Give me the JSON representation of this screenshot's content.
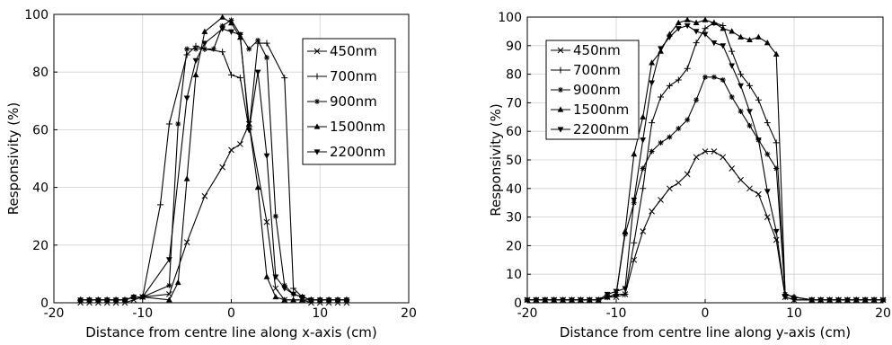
{
  "chart_data": [
    {
      "type": "line",
      "xlabel": "Distance from centre line along x-axis (cm)",
      "ylabel": "Responsivity (%)",
      "xlim": [
        -20,
        20
      ],
      "ylim": [
        0,
        100
      ],
      "xticks": [
        -20,
        -10,
        0,
        10,
        20
      ],
      "yticks": [
        0,
        20,
        40,
        60,
        80,
        100
      ],
      "grid": true,
      "legend": "top-right",
      "series": [
        {
          "name": "450nm",
          "marker": "x",
          "x": [
            -17,
            -16,
            -15,
            -14,
            -13,
            -12,
            -11,
            -10,
            -7,
            -5,
            -3,
            -1,
            0,
            1,
            2,
            4,
            5,
            6,
            8,
            9,
            10,
            11,
            12,
            13
          ],
          "y": [
            0,
            0,
            0,
            0,
            0,
            0,
            1,
            2,
            3,
            21,
            37,
            47,
            53,
            55,
            62,
            28,
            5,
            1,
            1,
            0,
            0,
            0,
            0,
            0
          ]
        },
        {
          "name": "700nm",
          "marker": "plus",
          "x": [
            -17,
            -16,
            -15,
            -14,
            -13,
            -12,
            -11,
            -10,
            -8,
            -7,
            -5,
            -4,
            -3,
            -1,
            0,
            1,
            2,
            3,
            4,
            6,
            7,
            8,
            9,
            10,
            11,
            12,
            13
          ],
          "y": [
            1,
            1,
            1,
            1,
            1,
            1,
            2,
            2,
            34,
            62,
            86,
            89,
            88,
            87,
            79,
            78,
            60,
            90,
            90,
            78,
            5,
            2,
            1,
            1,
            1,
            1,
            1
          ]
        },
        {
          "name": "900nm",
          "marker": "star",
          "x": [
            -17,
            -16,
            -15,
            -14,
            -13,
            -12,
            -11,
            -10,
            -7,
            -6,
            -5,
            -4,
            -3,
            -2,
            -1,
            0,
            1,
            2,
            3,
            4,
            5,
            6,
            7,
            8,
            9,
            10,
            11,
            12,
            13
          ],
          "y": [
            1,
            1,
            1,
            1,
            1,
            1,
            2,
            2,
            6,
            62,
            88,
            88,
            88,
            88,
            96,
            98,
            93,
            88,
            91,
            85,
            30,
            6,
            3,
            2,
            1,
            1,
            1,
            1,
            1
          ]
        },
        {
          "name": "1500nm",
          "marker": "triangle-up",
          "x": [
            -17,
            -16,
            -15,
            -14,
            -13,
            -12,
            -11,
            -10,
            -7,
            -6,
            -5,
            -4,
            -3,
            -1,
            0,
            1,
            2,
            3,
            4,
            5,
            6,
            7,
            8,
            9,
            10,
            11,
            12,
            13
          ],
          "y": [
            1,
            1,
            1,
            1,
            1,
            1,
            2,
            2,
            1,
            7,
            43,
            79,
            94,
            99,
            97,
            92,
            62,
            40,
            9,
            2,
            1,
            1,
            1,
            1,
            1,
            1,
            1,
            1
          ]
        },
        {
          "name": "2200nm",
          "marker": "triangle-down",
          "x": [
            -17,
            -16,
            -15,
            -14,
            -13,
            -12,
            -11,
            -10,
            -7,
            -5,
            -4,
            -3,
            -1,
            0,
            1,
            2,
            3,
            4,
            5,
            6,
            7,
            8,
            9,
            10,
            11,
            12,
            13
          ],
          "y": [
            1,
            1,
            1,
            1,
            1,
            1,
            2,
            2,
            15,
            71,
            84,
            90,
            95,
            94,
            93,
            60,
            80,
            51,
            9,
            5,
            3,
            2,
            1,
            1,
            1,
            1,
            1
          ]
        }
      ]
    },
    {
      "type": "line",
      "xlabel": "Distance from centre line along y-axis (cm)",
      "ylabel": "Responsivity (%)",
      "xlim": [
        -20,
        20
      ],
      "ylim": [
        0,
        100
      ],
      "xticks": [
        -20,
        -10,
        0,
        10,
        20
      ],
      "yticks": [
        0,
        10,
        20,
        30,
        40,
        50,
        60,
        70,
        80,
        90,
        100
      ],
      "grid": true,
      "legend": "top-left",
      "series": [
        {
          "name": "450nm",
          "marker": "x",
          "x": [
            -20,
            -19,
            -18,
            -17,
            -16,
            -15,
            -14,
            -13,
            -12,
            -11,
            -10,
            -9,
            -8,
            -7,
            -6,
            -5,
            -4,
            -3,
            -2,
            -1,
            0,
            1,
            2,
            3,
            4,
            5,
            6,
            7,
            8,
            9,
            10,
            12,
            13,
            14,
            15,
            16,
            17,
            18,
            19,
            20
          ],
          "y": [
            1,
            1,
            1,
            1,
            1,
            1,
            1,
            1,
            1,
            2,
            2,
            3,
            15,
            25,
            32,
            36,
            40,
            42,
            45,
            51,
            53,
            53,
            51,
            47,
            43,
            40,
            38,
            30,
            22,
            2,
            1,
            1,
            1,
            1,
            1,
            1,
            1,
            1,
            1,
            1
          ]
        },
        {
          "name": "700nm",
          "marker": "plus",
          "x": [
            -20,
            -19,
            -18,
            -17,
            -16,
            -15,
            -14,
            -13,
            -12,
            -11,
            -10,
            -9,
            -8,
            -7,
            -6,
            -5,
            -4,
            -3,
            -2,
            -1,
            0,
            1,
            2,
            3,
            4,
            5,
            6,
            7,
            8,
            9,
            10,
            12,
            13,
            14,
            15,
            16,
            17,
            18,
            19,
            20
          ],
          "y": [
            1,
            1,
            1,
            1,
            1,
            1,
            1,
            1,
            1,
            2,
            3,
            3,
            21,
            40,
            63,
            72,
            76,
            78,
            82,
            91,
            96,
            98,
            97,
            88,
            80,
            76,
            71,
            63,
            56,
            3,
            2,
            1,
            1,
            1,
            1,
            1,
            1,
            1,
            1,
            1
          ]
        },
        {
          "name": "900nm",
          "marker": "star",
          "x": [
            -20,
            -19,
            -18,
            -17,
            -16,
            -15,
            -14,
            -13,
            -12,
            -11,
            -10,
            -9,
            -8,
            -7,
            -6,
            -5,
            -4,
            -3,
            -2,
            -1,
            0,
            1,
            2,
            3,
            4,
            5,
            6,
            7,
            8,
            9,
            10,
            12,
            13,
            14,
            15,
            16,
            17,
            18,
            19,
            20
          ],
          "y": [
            1,
            1,
            1,
            1,
            1,
            1,
            1,
            1,
            1,
            2,
            3,
            24,
            35,
            47,
            53,
            56,
            58,
            61,
            64,
            71,
            79,
            79,
            78,
            72,
            67,
            62,
            57,
            52,
            47,
            3,
            2,
            1,
            1,
            1,
            1,
            1,
            1,
            1,
            1,
            1
          ]
        },
        {
          "name": "1500nm",
          "marker": "triangle-up",
          "x": [
            -20,
            -19,
            -18,
            -17,
            -16,
            -15,
            -14,
            -13,
            -12,
            -11,
            -10,
            -9,
            -8,
            -7,
            -6,
            -5,
            -4,
            -3,
            -2,
            -1,
            0,
            1,
            2,
            3,
            4,
            5,
            6,
            7,
            8,
            9,
            10,
            12,
            13,
            14,
            15,
            16,
            17,
            18,
            19,
            20
          ],
          "y": [
            1,
            1,
            1,
            1,
            1,
            1,
            1,
            1,
            1,
            2,
            3,
            25,
            52,
            65,
            84,
            88,
            94,
            98,
            99,
            98,
            99,
            98,
            96,
            95,
            93,
            92,
            93,
            91,
            87,
            3,
            2,
            1,
            1,
            1,
            1,
            1,
            1,
            1,
            1,
            1
          ]
        },
        {
          "name": "2200nm",
          "marker": "triangle-down",
          "x": [
            -20,
            -19,
            -18,
            -17,
            -16,
            -15,
            -14,
            -13,
            -12,
            -11,
            -10,
            -9,
            -8,
            -7,
            -6,
            -5,
            -4,
            -3,
            -2,
            -1,
            0,
            1,
            2,
            3,
            4,
            5,
            6,
            7,
            8,
            9,
            10,
            12,
            13,
            14,
            15,
            16,
            17,
            18,
            19,
            20
          ],
          "y": [
            1,
            1,
            1,
            1,
            1,
            1,
            1,
            1,
            1,
            3,
            4,
            5,
            36,
            57,
            77,
            89,
            93,
            96,
            97,
            95,
            94,
            91,
            90,
            83,
            76,
            67,
            57,
            39,
            25,
            2,
            1,
            1,
            1,
            1,
            1,
            1,
            1,
            1,
            1,
            1
          ]
        }
      ]
    }
  ]
}
